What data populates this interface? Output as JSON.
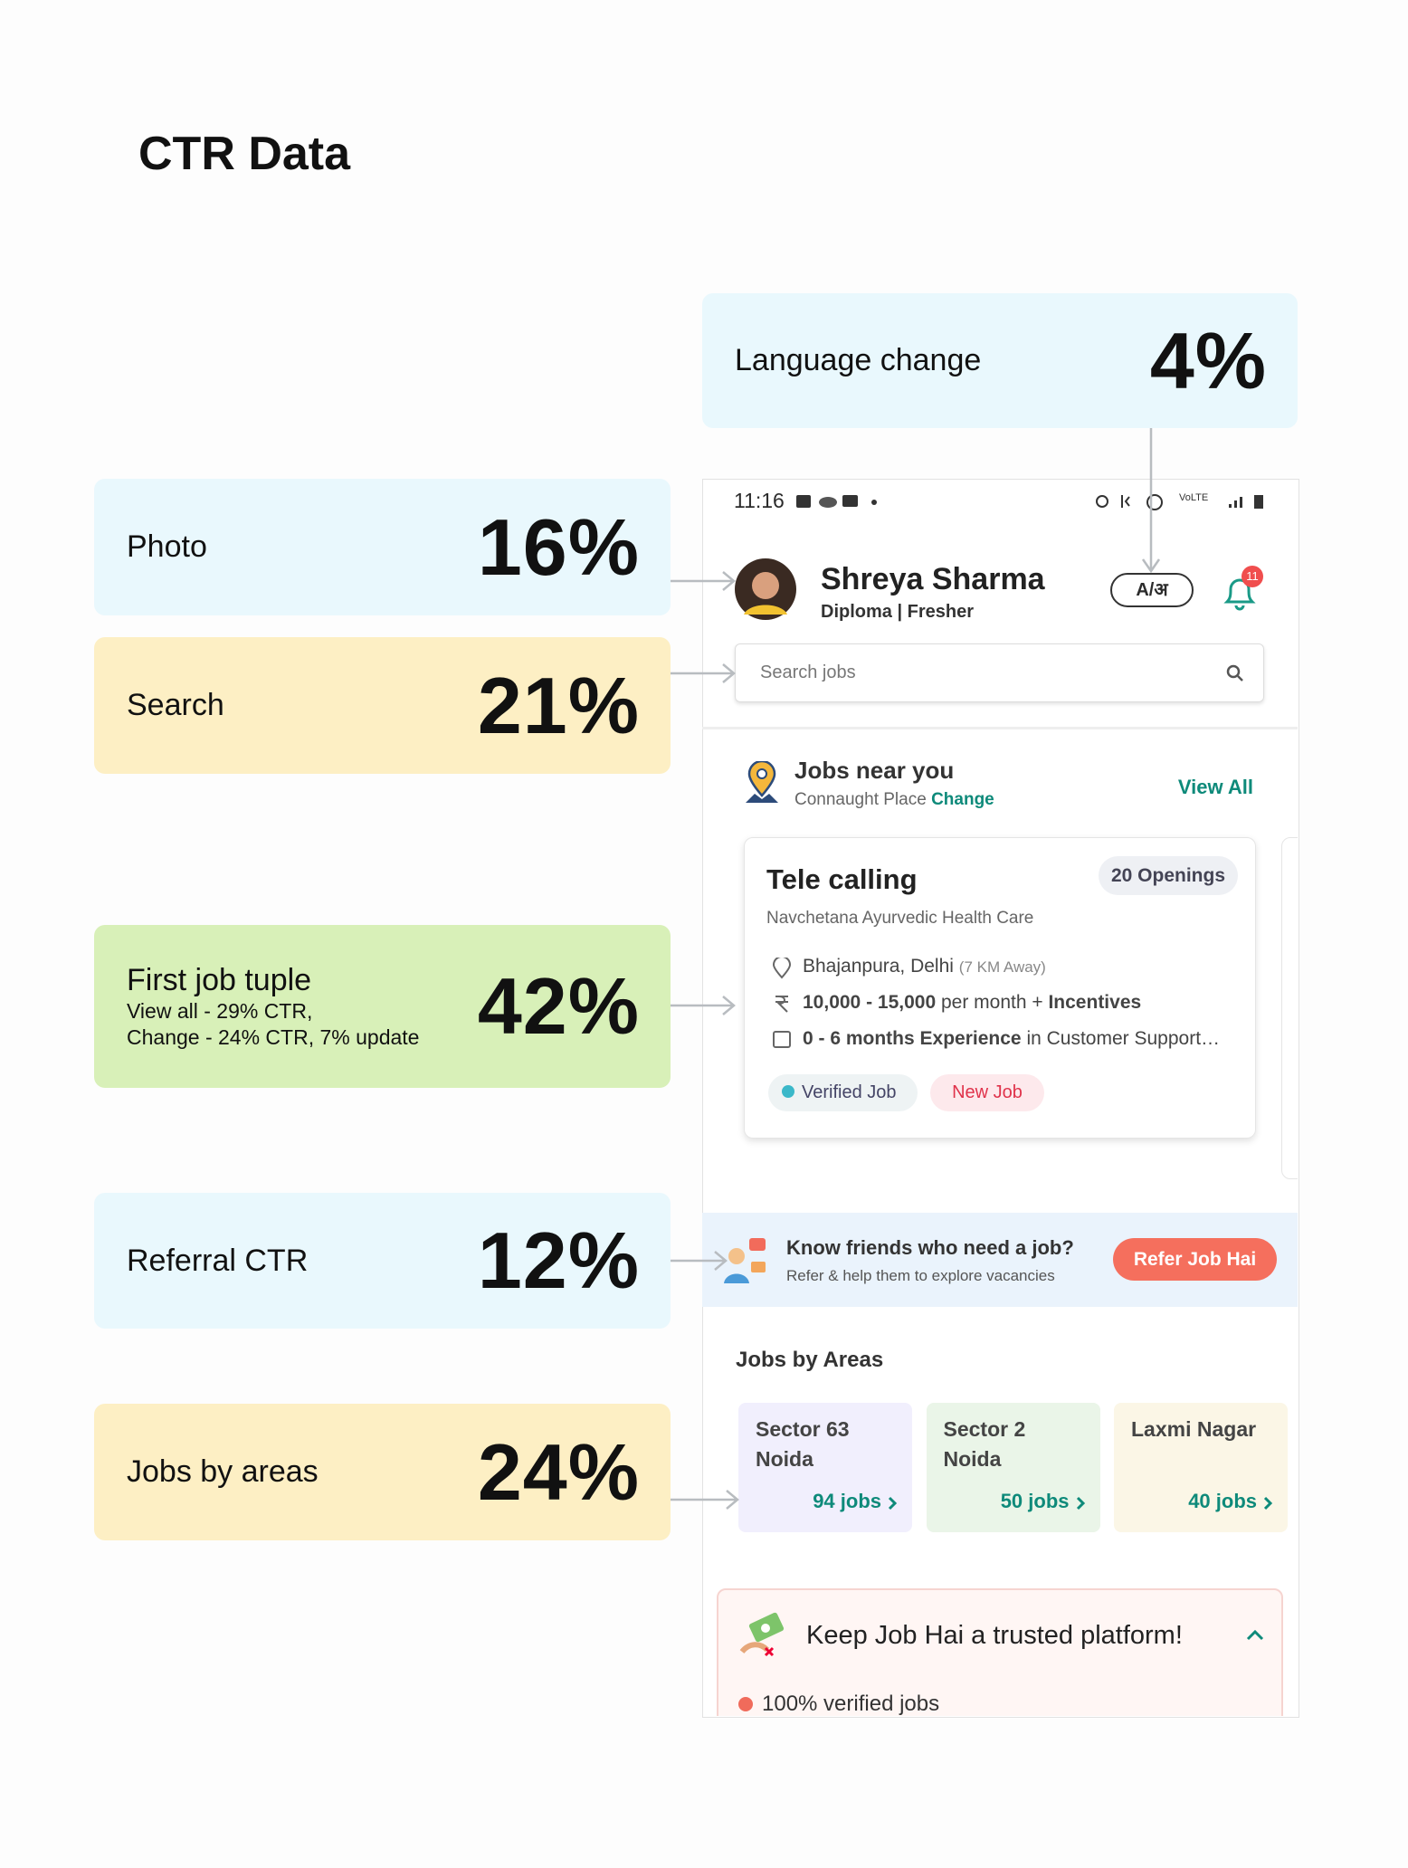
{
  "title": "CTR Data",
  "callouts": [
    {
      "label": "Language change",
      "value": "4%"
    },
    {
      "label": "Photo",
      "value": "16%"
    },
    {
      "label": "Search",
      "value": "21%"
    },
    {
      "label": "First job tuple",
      "details": [
        "View all - 29% CTR,",
        "Change - 24% CTR, 7% update"
      ],
      "value": "42%"
    },
    {
      "label": "Referral CTR",
      "value": "12%"
    },
    {
      "label": "Jobs by areas",
      "value": "24%"
    }
  ],
  "app": {
    "status_time": "11:16",
    "profile": {
      "name": "Shreya Sharma",
      "subtitle": "Diploma | Fresher",
      "language_button": "A/अ",
      "notifications": "11"
    },
    "search_placeholder": "Search jobs",
    "jobs_near_you": {
      "title": "Jobs near you",
      "location": "Connaught Place",
      "change": "Change",
      "view_all": "View All"
    },
    "job_card": {
      "title": "Tele calling",
      "openings": "20 Openings",
      "company": "Navchetana Ayurvedic Health Care",
      "location": "Bhajanpura, Delhi",
      "distance": "(7 KM Away)",
      "salary": "10,000 - 15,000",
      "salary_period": "per month +",
      "incentives": "Incentives",
      "experience": "0 - 6 months Experience",
      "experience_detail": "in Customer Support…",
      "badges": [
        "Verified Job",
        "New Job"
      ]
    },
    "referral": {
      "title": "Know friends who need a job?",
      "subtitle": "Refer & help them to explore vacancies",
      "button": "Refer Job Hai"
    },
    "jobs_by_areas": {
      "title": "Jobs by Areas",
      "areas": [
        {
          "name": [
            "Sector 63",
            "Noida"
          ],
          "jobs": "94 jobs"
        },
        {
          "name": [
            "Sector 2",
            "Noida"
          ],
          "jobs": "50 jobs"
        },
        {
          "name": [
            "Laxmi Nagar"
          ],
          "jobs": "40 jobs"
        }
      ]
    },
    "trust": {
      "title": "Keep Job Hai a trusted platform!",
      "item": "100% verified jobs"
    }
  }
}
